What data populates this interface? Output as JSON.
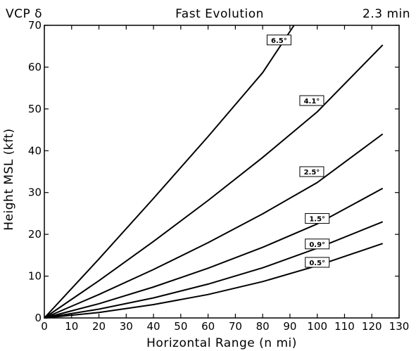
{
  "header": {
    "left": "VCP δ",
    "center": "Fast Evolution",
    "right": "2.3 min"
  },
  "chart_data": {
    "type": "line",
    "title": "Fast Evolution",
    "xlabel": "Horizontal Range (n mi)",
    "ylabel": "Height MSL (kft)",
    "xlim": [
      0,
      130
    ],
    "ylim": [
      0,
      70
    ],
    "xticks": [
      0,
      10,
      20,
      30,
      40,
      50,
      60,
      70,
      80,
      90,
      100,
      110,
      120,
      130
    ],
    "yticks": [
      0,
      10,
      20,
      30,
      40,
      50,
      60,
      70
    ],
    "grid": false,
    "series": [
      {
        "name": "0.5°",
        "x": [
          0,
          20,
          40,
          60,
          80,
          100,
          124
        ],
        "y": [
          0,
          1.3,
          3.2,
          5.6,
          8.7,
          12.5,
          17.8
        ],
        "label_pos": [
          100,
          13.3
        ]
      },
      {
        "name": "0.9°",
        "x": [
          0,
          20,
          40,
          60,
          80,
          100,
          124
        ],
        "y": [
          0,
          2.1,
          4.8,
          8.1,
          12.0,
          16.7,
          23.0
        ],
        "label_pos": [
          100,
          17.7
        ]
      },
      {
        "name": "1.5°",
        "x": [
          0,
          20,
          40,
          60,
          80,
          100,
          124
        ],
        "y": [
          0,
          3.4,
          7.4,
          11.9,
          16.9,
          22.5,
          31.0
        ],
        "label_pos": [
          100,
          23.8
        ]
      },
      {
        "name": "2.5°",
        "x": [
          0,
          20,
          40,
          60,
          80,
          100,
          124
        ],
        "y": [
          0,
          5.6,
          11.6,
          18.0,
          24.9,
          32.4,
          44.0
        ],
        "label_pos": [
          98,
          35.0
        ]
      },
      {
        "name": "4.1°",
        "x": [
          0,
          20,
          40,
          60,
          80,
          100,
          124
        ],
        "y": [
          0,
          8.9,
          18.3,
          28.1,
          38.4,
          49.3,
          65.3
        ],
        "label_pos": [
          98,
          52.0
        ]
      },
      {
        "name": "6.5°",
        "x": [
          0,
          20,
          40,
          60,
          80,
          91.5
        ],
        "y": [
          0,
          14.1,
          28.6,
          43.4,
          58.7,
          70.0
        ],
        "label_pos": [
          86,
          66.5
        ]
      }
    ]
  }
}
